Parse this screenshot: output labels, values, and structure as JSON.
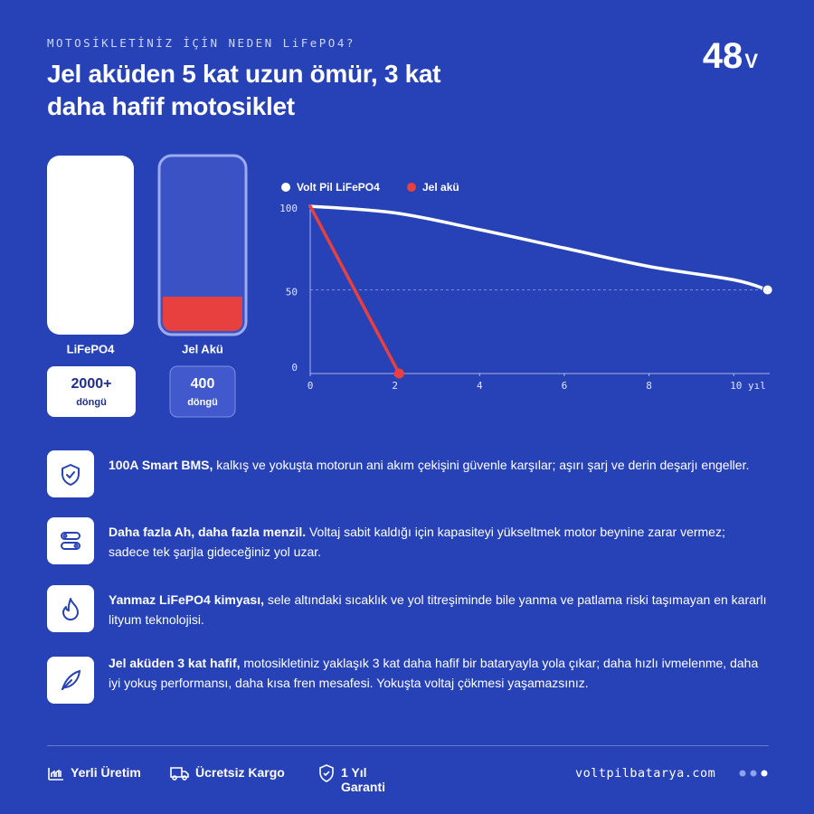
{
  "header": {
    "kicker": "MOTOSİKLETİNİZ İÇİN NEDEN LiFePO4?",
    "title_line1": "Jel aküden 5 kat uzun ömür, 3 kat",
    "title_line2": "daha hafif motosiklet",
    "voltage": "48",
    "voltage_unit": "V"
  },
  "batteries": [
    {
      "label": "LiFePO4",
      "cycles": "2000+",
      "cycles_unit": "döngü",
      "level": 100,
      "color": "#ffffff"
    },
    {
      "label": "Jel Akü",
      "cycles": "400",
      "cycles_unit": "döngü",
      "level": 20,
      "color": "#e8403f"
    }
  ],
  "chart_data": {
    "type": "line",
    "series": [
      {
        "name": "Volt Pil LiFePO4",
        "color": "#ffffff",
        "x": [
          0,
          2,
          4,
          6,
          8,
          10,
          10.8
        ],
        "values": [
          100,
          96,
          86,
          75,
          64,
          56,
          50
        ]
      },
      {
        "name": "Jel akü",
        "color": "#e8403f",
        "x": [
          0,
          2.1
        ],
        "values": [
          100,
          0
        ]
      }
    ],
    "xlim": [
      0,
      10.85
    ],
    "ylim": [
      0,
      100
    ],
    "xticks": [
      0,
      2,
      4,
      6,
      8,
      {
        "value": 10,
        "label": "10 yıl"
      }
    ],
    "yticks": [
      0,
      50,
      100
    ],
    "grid": true
  },
  "features": [
    {
      "bold": "100A Smart BMS,",
      "text": " kalkış ve yokuşta motorun ani akım çekişini güvenle karşılar; aşırı şarj ve derin deşarjı engeller."
    },
    {
      "bold": "Daha fazla Ah, daha fazla menzil.",
      "text": " Voltaj sabit kaldığı için kapasiteyi yükseltmek motor beynine zarar vermez; sadece tek şarjla gideceğiniz yol uzar."
    },
    {
      "bold": "Yanmaz LiFePO4 kimyası,",
      "text": " sele altındaki sıcaklık ve yol titreşiminde bile yanma ve patlama riski taşımayan en kararlı lityum teknolojisi."
    },
    {
      "bold": "Jel aküden 3 kat hafif,",
      "text": " motosikletiniz yaklaşık 3 kat daha hafif bir bataryayla yola çıkar; daha hızlı ivmelenme, daha iyi yokuş performansı, daha kısa fren mesafesi. Yokuşta voltaj çökmesi yaşamazsınız."
    }
  ],
  "footer": {
    "items": [
      "Yerli Üretim",
      "Ücretsiz Kargo",
      "1 Yıl Garanti"
    ],
    "website": "voltpilbatarya.com"
  }
}
